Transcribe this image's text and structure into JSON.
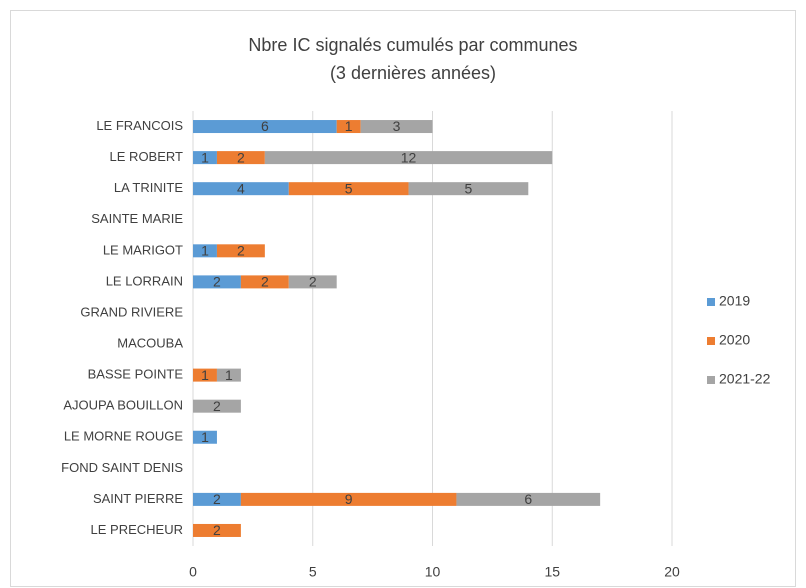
{
  "chart_data": {
    "type": "stacked-bar-horizontal",
    "title": "Nbre IC signalés cumulés par communes",
    "subtitle": "(3 dernières années)",
    "categories": [
      "LE FRANCOIS",
      "LE ROBERT",
      "LA TRINITE",
      "SAINTE MARIE",
      "LE MARIGOT",
      "LE LORRAIN",
      "GRAND RIVIERE",
      "MACOUBA",
      "BASSE POINTE",
      "AJOUPA BOUILLON",
      "LE MORNE ROUGE",
      "FOND SAINT DENIS",
      "SAINT PIERRE",
      "LE PRECHEUR"
    ],
    "series": [
      {
        "name": "2019",
        "color": "#5b9bd5",
        "values": [
          6,
          1,
          4,
          null,
          1,
          2,
          null,
          null,
          null,
          null,
          1,
          null,
          2,
          null
        ]
      },
      {
        "name": "2020",
        "color": "#ed7d31",
        "values": [
          1,
          2,
          5,
          null,
          2,
          2,
          null,
          null,
          1,
          null,
          null,
          null,
          9,
          2
        ]
      },
      {
        "name": "2021-22",
        "color": "#a5a5a5",
        "values": [
          3,
          12,
          5,
          null,
          null,
          2,
          null,
          null,
          1,
          2,
          null,
          null,
          6,
          null
        ]
      }
    ],
    "xlim": [
      0,
      20
    ],
    "xticks": [
      0,
      5,
      10,
      15,
      20
    ],
    "grid": true,
    "legend": "right"
  }
}
